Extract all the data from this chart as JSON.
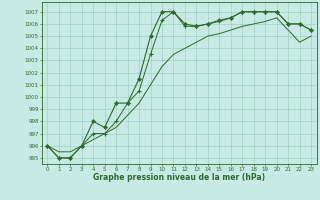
{
  "line1": {
    "x": [
      0,
      1,
      2,
      3,
      4,
      5,
      6,
      7,
      8,
      9,
      10,
      11,
      12,
      13,
      14,
      15,
      16,
      17,
      18,
      19,
      20,
      21,
      22,
      23
    ],
    "y": [
      996,
      995,
      995,
      996,
      998,
      997.5,
      999.5,
      999.5,
      1001.5,
      1005,
      1007,
      1007,
      1006,
      1005.8,
      1006,
      1006.3,
      1006.5,
      1007,
      1007,
      1007,
      1007,
      1006,
      1006,
      1005.5
    ],
    "color": "#2d6a2d",
    "marker": "D",
    "markersize": 2.0,
    "linewidth": 0.8
  },
  "line2": {
    "x": [
      0,
      1,
      2,
      3,
      4,
      5,
      6,
      7,
      8,
      9,
      10,
      11,
      12,
      13,
      14,
      15,
      16,
      17,
      18,
      19,
      20,
      21,
      22,
      23
    ],
    "y": [
      996,
      995,
      995,
      996,
      997,
      997,
      998,
      999.5,
      1000.5,
      1003.5,
      1006.3,
      1007,
      1005.8,
      1005.8,
      1006,
      1006.2,
      1006.5,
      1007,
      1007,
      1007,
      1007,
      1006,
      1006,
      1005.5
    ],
    "color": "#2d6a2d",
    "marker": "+",
    "markersize": 3.5,
    "linewidth": 0.7
  },
  "line3": {
    "x": [
      0,
      1,
      2,
      3,
      4,
      5,
      6,
      7,
      8,
      9,
      10,
      11,
      12,
      13,
      14,
      15,
      16,
      17,
      18,
      19,
      20,
      21,
      22,
      23
    ],
    "y": [
      996,
      995.5,
      995.5,
      996,
      996.5,
      997,
      997.5,
      998.5,
      999.5,
      1001,
      1002.5,
      1003.5,
      1004,
      1004.5,
      1005,
      1005.2,
      1005.5,
      1005.8,
      1006,
      1006.2,
      1006.5,
      1005.5,
      1004.5,
      1005
    ],
    "color": "#2d6a2d",
    "marker": "None",
    "markersize": 0,
    "linewidth": 0.7
  },
  "bg_color": "#c8eae4",
  "grid_color": "#99ccbb",
  "line_color": "#2d6a2d",
  "axis_color": "#2d6a2d",
  "xlabel": "Graphe pression niveau de la mer (hPa)",
  "ylim": [
    994.5,
    1007.8
  ],
  "xlim": [
    -0.5,
    23.5
  ],
  "yticks": [
    995,
    996,
    997,
    998,
    999,
    1000,
    1001,
    1002,
    1003,
    1004,
    1005,
    1006,
    1007
  ],
  "xticks": [
    0,
    1,
    2,
    3,
    4,
    5,
    6,
    7,
    8,
    9,
    10,
    11,
    12,
    13,
    14,
    15,
    16,
    17,
    18,
    19,
    20,
    21,
    22,
    23
  ]
}
